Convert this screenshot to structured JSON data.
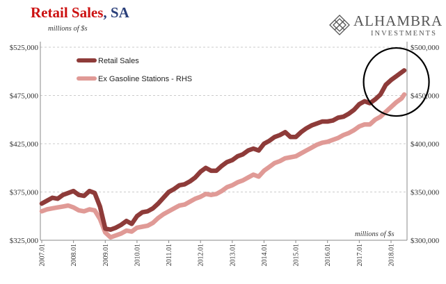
{
  "chart_data": {
    "type": "line",
    "title": "Retail Sales",
    "title_suffix": ", SA",
    "left_unit_label": "millions of $s",
    "right_unit_label": "millions of $s",
    "colors": {
      "title_main": "#cc1111",
      "title_suffix": "#2a3f7a",
      "retail_sales": "#8e3b39",
      "ex_gasoline": "#e09a96",
      "grid": "#bbbbbb",
      "annotation_circle": "#000000"
    },
    "grid": true,
    "legend": "top-left",
    "annotation": {
      "shape": "circle",
      "center_x": "2018.03",
      "center_y_left": 489000
    },
    "left_axis": {
      "min": 325000,
      "max": 525000,
      "ticks": [
        325000,
        375000,
        425000,
        475000,
        525000
      ],
      "tick_labels": [
        "$325,000",
        "$375,000",
        "$425,000",
        "$475,000",
        "$525,000"
      ]
    },
    "right_axis": {
      "min": 300000,
      "max": 500000,
      "ticks": [
        300000,
        350000,
        400000,
        450000,
        500000
      ],
      "tick_labels": [
        "$300,000",
        "$350,000",
        "$400,000",
        "$450,000",
        "$500,000"
      ]
    },
    "x_axis": {
      "start": "2007.01",
      "end": "2018.06",
      "tick_labels": [
        "2007.01",
        "2008.01",
        "2009.01",
        "2010.01",
        "2011.01",
        "2012.01",
        "2013.01",
        "2014.01",
        "2015.01",
        "2016.01",
        "2017.01",
        "2018.01"
      ]
    },
    "series": [
      {
        "name": "Retail Sales",
        "axis": "left",
        "x": [
          "2007.01",
          "2007.03",
          "2007.05",
          "2007.07",
          "2007.09",
          "2007.11",
          "2008.01",
          "2008.03",
          "2008.05",
          "2008.07",
          "2008.09",
          "2008.11",
          "2009.01",
          "2009.03",
          "2009.05",
          "2009.07",
          "2009.09",
          "2009.11",
          "2010.01",
          "2010.03",
          "2010.05",
          "2010.07",
          "2010.09",
          "2010.11",
          "2011.01",
          "2011.03",
          "2011.05",
          "2011.07",
          "2011.09",
          "2011.11",
          "2012.01",
          "2012.03",
          "2012.05",
          "2012.07",
          "2012.09",
          "2012.11",
          "2013.01",
          "2013.03",
          "2013.05",
          "2013.07",
          "2013.09",
          "2013.11",
          "2014.01",
          "2014.03",
          "2014.05",
          "2014.07",
          "2014.09",
          "2014.11",
          "2015.01",
          "2015.03",
          "2015.05",
          "2015.07",
          "2015.09",
          "2015.11",
          "2016.01",
          "2016.03",
          "2016.05",
          "2016.07",
          "2016.09",
          "2016.11",
          "2017.01",
          "2017.03",
          "2017.05",
          "2017.07",
          "2017.09",
          "2017.11",
          "2018.01",
          "2018.03",
          "2018.05",
          "2018.06"
        ],
        "values": [
          363000,
          366000,
          369000,
          368000,
          372000,
          374000,
          376000,
          372000,
          371000,
          376000,
          374000,
          360000,
          337000,
          336000,
          338000,
          341000,
          345000,
          342000,
          350000,
          354000,
          355000,
          358000,
          363000,
          369000,
          375000,
          378000,
          382000,
          383000,
          386000,
          390000,
          396000,
          400000,
          397000,
          397000,
          402000,
          406000,
          408000,
          412000,
          414000,
          418000,
          420000,
          418000,
          425000,
          428000,
          432000,
          434000,
          437000,
          432000,
          432000,
          437000,
          441000,
          444000,
          446000,
          448000,
          448000,
          449000,
          452000,
          453000,
          456000,
          460000,
          466000,
          469000,
          467000,
          471000,
          476000,
          486000,
          491000,
          495000,
          499000,
          501000
        ]
      },
      {
        "name": "Ex Gasoline Stations - RHS",
        "axis": "right",
        "x": [
          "2007.01",
          "2007.03",
          "2007.05",
          "2007.07",
          "2007.09",
          "2007.11",
          "2008.01",
          "2008.03",
          "2008.05",
          "2008.07",
          "2008.09",
          "2008.11",
          "2009.01",
          "2009.03",
          "2009.05",
          "2009.07",
          "2009.09",
          "2009.11",
          "2010.01",
          "2010.03",
          "2010.05",
          "2010.07",
          "2010.09",
          "2010.11",
          "2011.01",
          "2011.03",
          "2011.05",
          "2011.07",
          "2011.09",
          "2011.11",
          "2012.01",
          "2012.03",
          "2012.05",
          "2012.07",
          "2012.09",
          "2012.11",
          "2013.01",
          "2013.03",
          "2013.05",
          "2013.07",
          "2013.09",
          "2013.11",
          "2014.01",
          "2014.03",
          "2014.05",
          "2014.07",
          "2014.09",
          "2014.11",
          "2015.01",
          "2015.03",
          "2015.05",
          "2015.07",
          "2015.09",
          "2015.11",
          "2016.01",
          "2016.03",
          "2016.05",
          "2016.07",
          "2016.09",
          "2016.11",
          "2017.01",
          "2017.03",
          "2017.05",
          "2017.07",
          "2017.09",
          "2017.11",
          "2018.01",
          "2018.03",
          "2018.05",
          "2018.06"
        ],
        "values": [
          330000,
          332000,
          333000,
          334000,
          335000,
          336000,
          334000,
          331000,
          330000,
          332000,
          331000,
          322000,
          308000,
          303000,
          305000,
          307000,
          310000,
          309000,
          313000,
          314000,
          315000,
          318000,
          323000,
          327000,
          330000,
          333000,
          336000,
          337000,
          340000,
          343000,
          345000,
          348000,
          347000,
          348000,
          351000,
          355000,
          357000,
          360000,
          362000,
          365000,
          368000,
          366000,
          372000,
          376000,
          380000,
          382000,
          385000,
          386000,
          387000,
          390000,
          393000,
          396000,
          399000,
          401000,
          402000,
          404000,
          406000,
          409000,
          411000,
          414000,
          418000,
          420000,
          420000,
          425000,
          428000,
          433000,
          438000,
          443000,
          447000,
          451000
        ]
      }
    ]
  },
  "logo": {
    "name": "ALHAMBRA",
    "subtitle": "INVESTMENTS",
    "icon": "diamond-lattice-icon"
  }
}
